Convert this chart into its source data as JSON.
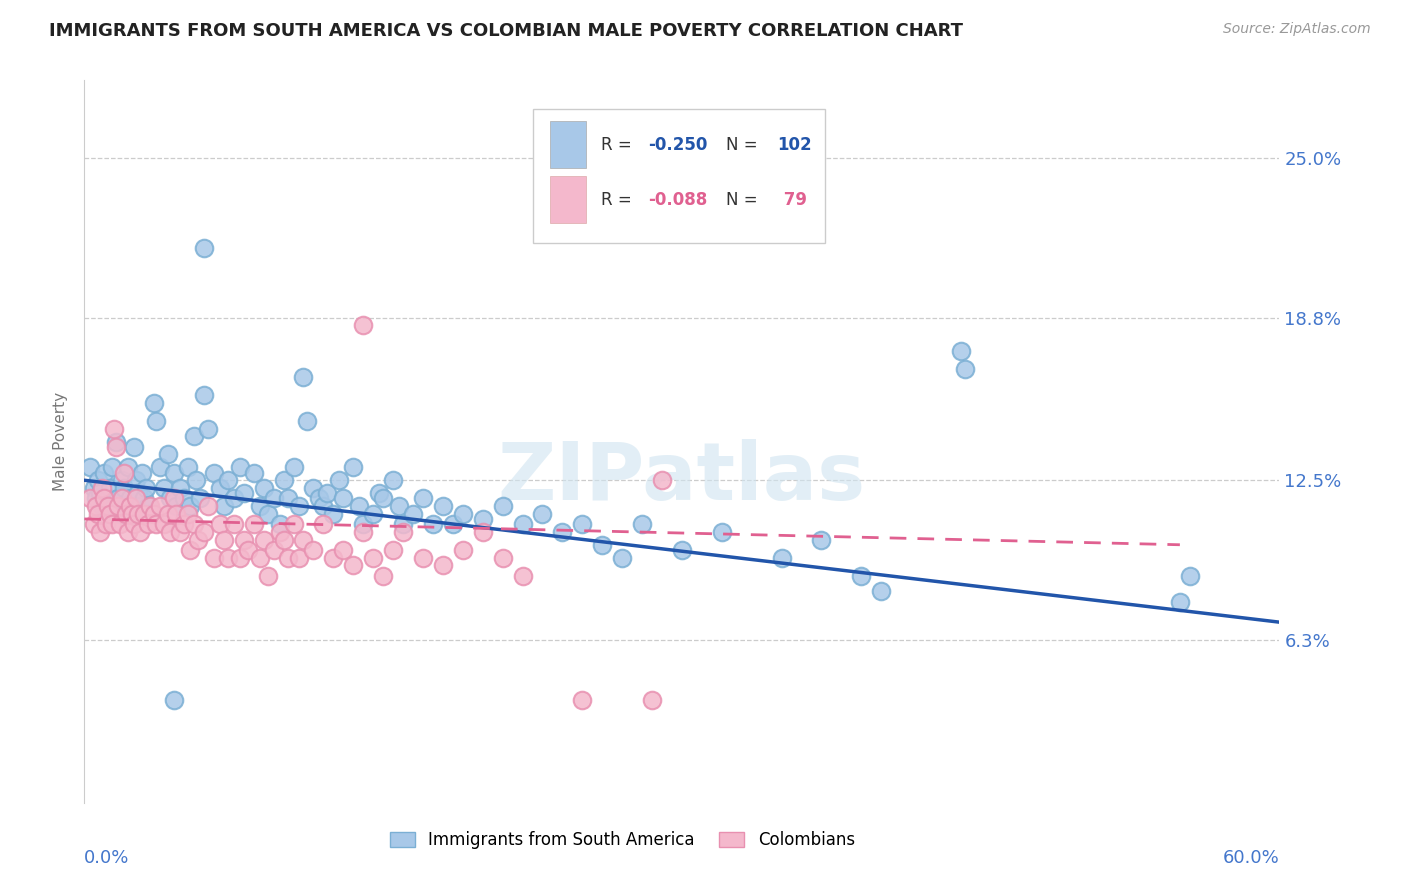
{
  "title": "IMMIGRANTS FROM SOUTH AMERICA VS COLOMBIAN MALE POVERTY CORRELATION CHART",
  "source": "Source: ZipAtlas.com",
  "ylabel": "Male Poverty",
  "ytick_labels": [
    "25.0%",
    "18.8%",
    "12.5%",
    "6.3%"
  ],
  "ytick_values": [
    0.25,
    0.188,
    0.125,
    0.063
  ],
  "xmin": 0.0,
  "xmax": 0.6,
  "ymin": 0.0,
  "ymax": 0.28,
  "watermark": "ZIPatlas",
  "legend_label_blue": "Immigrants from South America",
  "legend_label_pink": "Colombians",
  "blue_color": "#a8c8e8",
  "pink_color": "#f4b8cc",
  "blue_edge_color": "#7bafd4",
  "pink_edge_color": "#e890b0",
  "blue_line_color": "#2255aa",
  "pink_line_color": "#e06090",
  "title_color": "#222222",
  "axis_label_color": "#4477cc",
  "tick_label_color": "#4477cc",
  "grid_color": "#cccccc",
  "blue_scatter": [
    [
      0.003,
      0.13
    ],
    [
      0.005,
      0.122
    ],
    [
      0.006,
      0.118
    ],
    [
      0.007,
      0.125
    ],
    [
      0.008,
      0.12
    ],
    [
      0.009,
      0.115
    ],
    [
      0.01,
      0.128
    ],
    [
      0.011,
      0.112
    ],
    [
      0.012,
      0.118
    ],
    [
      0.013,
      0.122
    ],
    [
      0.014,
      0.13
    ],
    [
      0.015,
      0.115
    ],
    [
      0.016,
      0.14
    ],
    [
      0.017,
      0.118
    ],
    [
      0.018,
      0.112
    ],
    [
      0.019,
      0.125
    ],
    [
      0.02,
      0.122
    ],
    [
      0.021,
      0.115
    ],
    [
      0.022,
      0.13
    ],
    [
      0.023,
      0.118
    ],
    [
      0.024,
      0.112
    ],
    [
      0.025,
      0.138
    ],
    [
      0.026,
      0.125
    ],
    [
      0.027,
      0.12
    ],
    [
      0.028,
      0.115
    ],
    [
      0.029,
      0.128
    ],
    [
      0.03,
      0.118
    ],
    [
      0.031,
      0.122
    ],
    [
      0.032,
      0.115
    ],
    [
      0.033,
      0.112
    ],
    [
      0.035,
      0.155
    ],
    [
      0.036,
      0.148
    ],
    [
      0.038,
      0.13
    ],
    [
      0.04,
      0.122
    ],
    [
      0.042,
      0.135
    ],
    [
      0.043,
      0.118
    ],
    [
      0.045,
      0.128
    ],
    [
      0.046,
      0.115
    ],
    [
      0.048,
      0.122
    ],
    [
      0.05,
      0.118
    ],
    [
      0.052,
      0.13
    ],
    [
      0.053,
      0.115
    ],
    [
      0.055,
      0.142
    ],
    [
      0.056,
      0.125
    ],
    [
      0.058,
      0.118
    ],
    [
      0.06,
      0.158
    ],
    [
      0.062,
      0.145
    ],
    [
      0.065,
      0.128
    ],
    [
      0.068,
      0.122
    ],
    [
      0.07,
      0.115
    ],
    [
      0.072,
      0.125
    ],
    [
      0.075,
      0.118
    ],
    [
      0.078,
      0.13
    ],
    [
      0.08,
      0.12
    ],
    [
      0.085,
      0.128
    ],
    [
      0.088,
      0.115
    ],
    [
      0.09,
      0.122
    ],
    [
      0.092,
      0.112
    ],
    [
      0.095,
      0.118
    ],
    [
      0.098,
      0.108
    ],
    [
      0.1,
      0.125
    ],
    [
      0.102,
      0.118
    ],
    [
      0.105,
      0.13
    ],
    [
      0.108,
      0.115
    ],
    [
      0.11,
      0.165
    ],
    [
      0.112,
      0.148
    ],
    [
      0.115,
      0.122
    ],
    [
      0.118,
      0.118
    ],
    [
      0.12,
      0.115
    ],
    [
      0.122,
      0.12
    ],
    [
      0.125,
      0.112
    ],
    [
      0.128,
      0.125
    ],
    [
      0.13,
      0.118
    ],
    [
      0.135,
      0.13
    ],
    [
      0.138,
      0.115
    ],
    [
      0.14,
      0.108
    ],
    [
      0.145,
      0.112
    ],
    [
      0.148,
      0.12
    ],
    [
      0.15,
      0.118
    ],
    [
      0.155,
      0.125
    ],
    [
      0.158,
      0.115
    ],
    [
      0.16,
      0.108
    ],
    [
      0.165,
      0.112
    ],
    [
      0.17,
      0.118
    ],
    [
      0.175,
      0.108
    ],
    [
      0.18,
      0.115
    ],
    [
      0.185,
      0.108
    ],
    [
      0.19,
      0.112
    ],
    [
      0.2,
      0.11
    ],
    [
      0.21,
      0.115
    ],
    [
      0.22,
      0.108
    ],
    [
      0.23,
      0.112
    ],
    [
      0.24,
      0.105
    ],
    [
      0.25,
      0.108
    ],
    [
      0.26,
      0.1
    ],
    [
      0.27,
      0.095
    ],
    [
      0.28,
      0.108
    ],
    [
      0.3,
      0.098
    ],
    [
      0.32,
      0.105
    ],
    [
      0.35,
      0.095
    ],
    [
      0.37,
      0.102
    ],
    [
      0.39,
      0.088
    ],
    [
      0.4,
      0.082
    ],
    [
      0.55,
      0.078
    ],
    [
      0.555,
      0.088
    ],
    [
      0.06,
      0.215
    ],
    [
      0.44,
      0.175
    ],
    [
      0.442,
      0.168
    ],
    [
      0.045,
      0.04
    ]
  ],
  "pink_scatter": [
    [
      0.003,
      0.118
    ],
    [
      0.005,
      0.108
    ],
    [
      0.006,
      0.115
    ],
    [
      0.007,
      0.112
    ],
    [
      0.008,
      0.105
    ],
    [
      0.009,
      0.122
    ],
    [
      0.01,
      0.118
    ],
    [
      0.011,
      0.108
    ],
    [
      0.012,
      0.115
    ],
    [
      0.013,
      0.112
    ],
    [
      0.014,
      0.108
    ],
    [
      0.015,
      0.145
    ],
    [
      0.016,
      0.138
    ],
    [
      0.017,
      0.115
    ],
    [
      0.018,
      0.108
    ],
    [
      0.019,
      0.118
    ],
    [
      0.02,
      0.128
    ],
    [
      0.021,
      0.112
    ],
    [
      0.022,
      0.105
    ],
    [
      0.023,
      0.115
    ],
    [
      0.024,
      0.112
    ],
    [
      0.025,
      0.108
    ],
    [
      0.026,
      0.118
    ],
    [
      0.027,
      0.112
    ],
    [
      0.028,
      0.105
    ],
    [
      0.03,
      0.112
    ],
    [
      0.032,
      0.108
    ],
    [
      0.033,
      0.115
    ],
    [
      0.035,
      0.112
    ],
    [
      0.036,
      0.108
    ],
    [
      0.038,
      0.115
    ],
    [
      0.04,
      0.108
    ],
    [
      0.042,
      0.112
    ],
    [
      0.043,
      0.105
    ],
    [
      0.045,
      0.118
    ],
    [
      0.046,
      0.112
    ],
    [
      0.048,
      0.105
    ],
    [
      0.05,
      0.108
    ],
    [
      0.052,
      0.112
    ],
    [
      0.053,
      0.098
    ],
    [
      0.055,
      0.108
    ],
    [
      0.057,
      0.102
    ],
    [
      0.06,
      0.105
    ],
    [
      0.062,
      0.115
    ],
    [
      0.065,
      0.095
    ],
    [
      0.068,
      0.108
    ],
    [
      0.07,
      0.102
    ],
    [
      0.072,
      0.095
    ],
    [
      0.075,
      0.108
    ],
    [
      0.078,
      0.095
    ],
    [
      0.08,
      0.102
    ],
    [
      0.082,
      0.098
    ],
    [
      0.085,
      0.108
    ],
    [
      0.088,
      0.095
    ],
    [
      0.09,
      0.102
    ],
    [
      0.092,
      0.088
    ],
    [
      0.095,
      0.098
    ],
    [
      0.098,
      0.105
    ],
    [
      0.1,
      0.102
    ],
    [
      0.102,
      0.095
    ],
    [
      0.105,
      0.108
    ],
    [
      0.108,
      0.095
    ],
    [
      0.11,
      0.102
    ],
    [
      0.115,
      0.098
    ],
    [
      0.12,
      0.108
    ],
    [
      0.125,
      0.095
    ],
    [
      0.13,
      0.098
    ],
    [
      0.135,
      0.092
    ],
    [
      0.14,
      0.105
    ],
    [
      0.145,
      0.095
    ],
    [
      0.15,
      0.088
    ],
    [
      0.155,
      0.098
    ],
    [
      0.16,
      0.105
    ],
    [
      0.17,
      0.095
    ],
    [
      0.18,
      0.092
    ],
    [
      0.19,
      0.098
    ],
    [
      0.2,
      0.105
    ],
    [
      0.21,
      0.095
    ],
    [
      0.22,
      0.088
    ],
    [
      0.29,
      0.125
    ],
    [
      0.14,
      0.185
    ],
    [
      0.25,
      0.04
    ],
    [
      0.285,
      0.04
    ]
  ]
}
